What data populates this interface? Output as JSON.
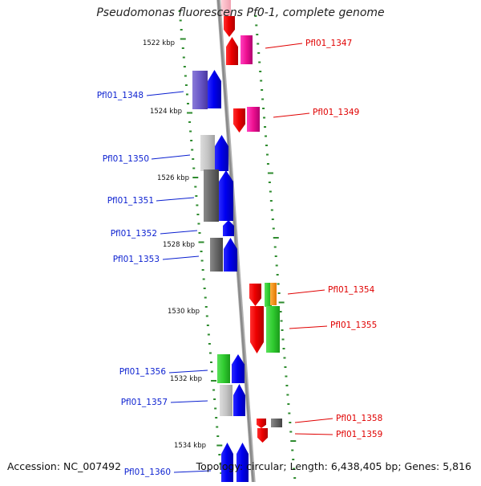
{
  "title": "Pseudomonas fluorescens Pf0-1, complete genome",
  "footer": {
    "accession": "Accession: NC_007492",
    "summary": "Topology: circular; Length: 6,438,405 bp; Genes: 5,816"
  },
  "colors": {
    "backbone": "#8a8a8a",
    "tick": "#2e8b2e",
    "forward_label": "#0a1fd0",
    "reverse_label": "#e00000"
  },
  "kbp_ticks": [
    "1522 kbp",
    "1524 kbp",
    "1526 kbp",
    "1528 kbp",
    "1530 kbp",
    "1532 kbp",
    "1534 kbp"
  ],
  "forward_genes": [
    "Pfl01_1348",
    "Pfl01_1350",
    "Pfl01_1351",
    "Pfl01_1352",
    "Pfl01_1353",
    "Pfl01_1356",
    "Pfl01_1357",
    "Pfl01_1360"
  ],
  "reverse_genes": [
    "Pfl01_1347",
    "Pfl01_1349",
    "Pfl01_1354",
    "Pfl01_1355",
    "Pfl01_1358",
    "Pfl01_1359"
  ]
}
